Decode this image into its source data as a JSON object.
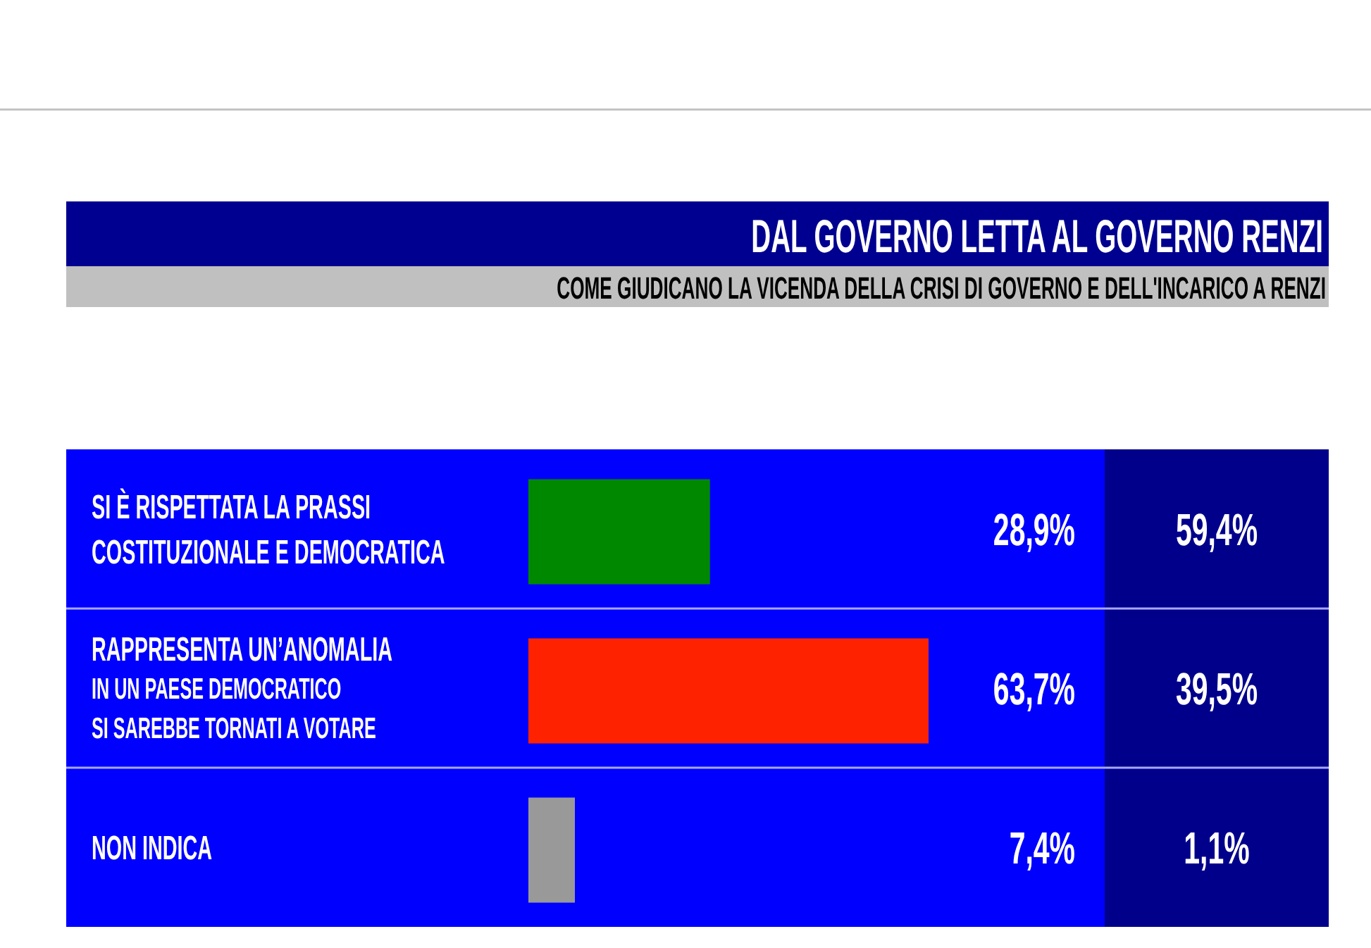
{
  "chart_data": {
    "type": "bar",
    "orientation": "horizontal",
    "title": "DAL GOVERNO LETTA AL GOVERNO RENZI",
    "subtitle": "COME GIUDICANO LA VICENDA DELLA CRISI DI GOVERNO E DELL'INCARICO A RENZI",
    "categories": [
      "SI È RISPETTATA LA PRASSI\nCOSTITUZIONALE E DEMOCRATICA",
      "RAPPRESENTA UN’ANOMALIA\nIN UN PAESE DEMOCRATICO\nSI SAREBBE TORNATI A VOTARE",
      "NON INDICA"
    ],
    "values": [
      28.9,
      63.7,
      7.4
    ],
    "colors": [
      "#008800",
      "#ff2200",
      "#999999"
    ],
    "value_labels": [
      "28,9%",
      "63,7%",
      "7,4%"
    ],
    "tick_labels": "y",
    "grid": "y",
    "annotations": [
      "59,4%",
      "39,5%",
      "1,1%"
    ]
  }
}
